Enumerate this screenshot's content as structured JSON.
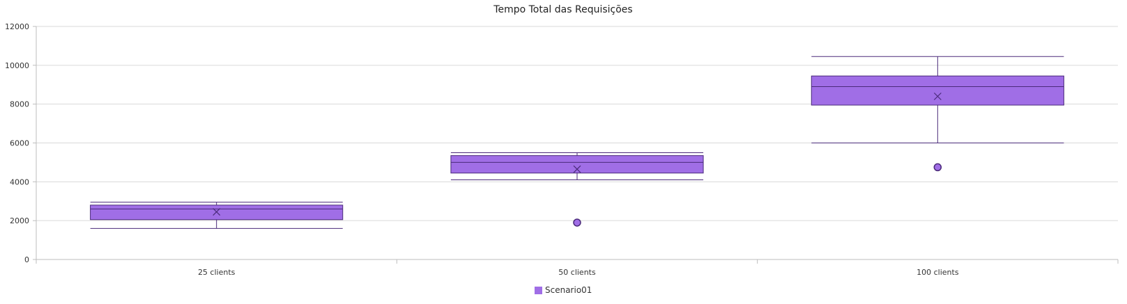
{
  "chart_data": {
    "type": "box",
    "title": "Tempo Total das Requisições",
    "xlabel": "",
    "ylabel": "",
    "ylim": [
      0,
      12000
    ],
    "yticks": [
      "0",
      "2000",
      "4000",
      "6000",
      "8000",
      "10000",
      "12000"
    ],
    "categories": [
      "25 clients",
      "50 clients",
      "100 clients"
    ],
    "grid": true,
    "legend_position": "bottom",
    "series": [
      {
        "name": "Scenario01",
        "color": "#a06ee6",
        "stroke": "#4a2a7a",
        "boxes": [
          {
            "min": 1600,
            "q1": 2050,
            "median": 2600,
            "q3": 2800,
            "max": 2950,
            "mean": 2450,
            "outliers": []
          },
          {
            "min": 4100,
            "q1": 4450,
            "median": 5000,
            "q3": 5350,
            "max": 5500,
            "mean": 4650,
            "outliers": [
              1900
            ]
          },
          {
            "min": 6000,
            "q1": 7950,
            "median": 8900,
            "q3": 9450,
            "max": 10450,
            "mean": 8400,
            "outliers": [
              4750
            ]
          }
        ]
      }
    ]
  }
}
